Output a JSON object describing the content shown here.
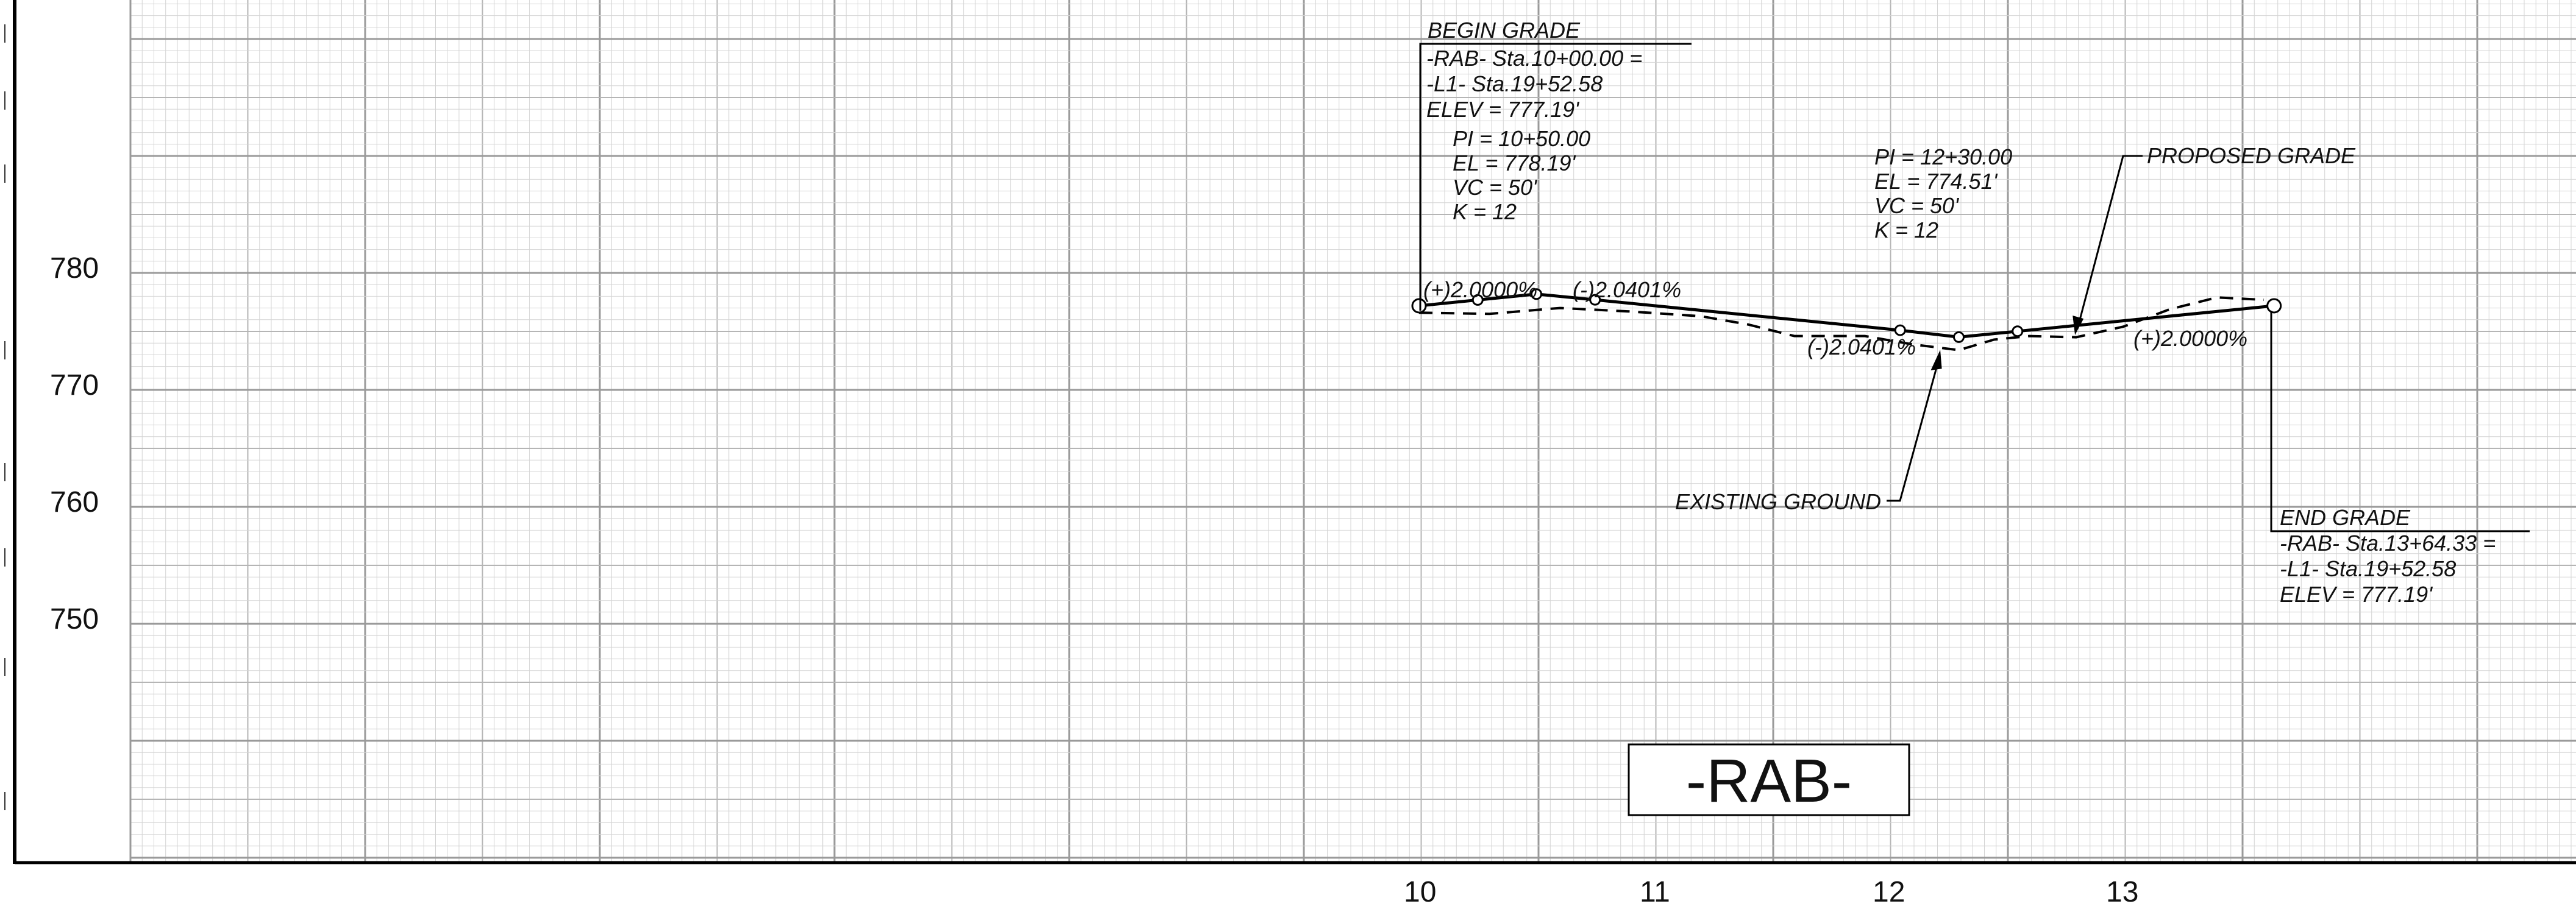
{
  "chart_data": {
    "type": "profile",
    "title": "-RAB-",
    "x_ticks": [
      "10",
      "11",
      "12",
      "13"
    ],
    "y_ticks": [
      "780",
      "770",
      "760",
      "750"
    ],
    "xlim": [
      4,
      15
    ],
    "ylim": [
      742,
      815
    ],
    "proposed_grade": {
      "label": "PROPOSED GRADE",
      "points": [
        {
          "sta": 10.0,
          "el": 777.19
        },
        {
          "sta": 10.25,
          "el": 777.69
        },
        {
          "sta": 10.5,
          "el": 778.19
        },
        {
          "sta": 10.75,
          "el": 777.7
        },
        {
          "sta": 12.05,
          "el": 775.1
        },
        {
          "sta": 12.3,
          "el": 774.51
        },
        {
          "sta": 12.55,
          "el": 775.01
        },
        {
          "sta": 13.6433,
          "el": 777.19
        }
      ]
    },
    "existing_ground": {
      "label": "EXISTING GROUND",
      "points": [
        {
          "sta": 10.0,
          "el": 776.6
        },
        {
          "sta": 10.3,
          "el": 776.5
        },
        {
          "sta": 10.6,
          "el": 777.0
        },
        {
          "sta": 10.9,
          "el": 776.7
        },
        {
          "sta": 11.2,
          "el": 776.3
        },
        {
          "sta": 11.4,
          "el": 775.6
        },
        {
          "sta": 11.6,
          "el": 774.6
        },
        {
          "sta": 11.9,
          "el": 774.6
        },
        {
          "sta": 12.1,
          "el": 773.9
        },
        {
          "sta": 12.3,
          "el": 773.4
        },
        {
          "sta": 12.45,
          "el": 774.3
        },
        {
          "sta": 12.6,
          "el": 774.6
        },
        {
          "sta": 12.8,
          "el": 774.5
        },
        {
          "sta": 13.0,
          "el": 775.4
        },
        {
          "sta": 13.2,
          "el": 776.9
        },
        {
          "sta": 13.4,
          "el": 777.9
        },
        {
          "sta": 13.6,
          "el": 777.7
        }
      ]
    },
    "grade_labels": [
      "(+)2.0000%",
      "(-)2.0401%",
      "(-)2.0401%",
      "(+)2.0000%"
    ],
    "begin_grade": {
      "heading": "BEGIN GRADE",
      "lines": [
        "-RAB- Sta.10+00.00 =",
        "-L1- Sta.19+52.58",
        "ELEV = 777.19'"
      ]
    },
    "pvi_1": {
      "lines": [
        "PI = 10+50.00",
        "EL = 778.19'",
        "VC = 50'",
        "K = 12"
      ]
    },
    "pvi_2": {
      "lines": [
        "PI = 12+30.00",
        "EL = 774.51'",
        "VC = 50'",
        "K = 12"
      ]
    },
    "end_grade": {
      "heading": "END GRADE",
      "lines": [
        "-RAB- Sta.13+64.33 =",
        "-L1- Sta.19+52.58",
        "ELEV = 777.19'"
      ]
    }
  }
}
